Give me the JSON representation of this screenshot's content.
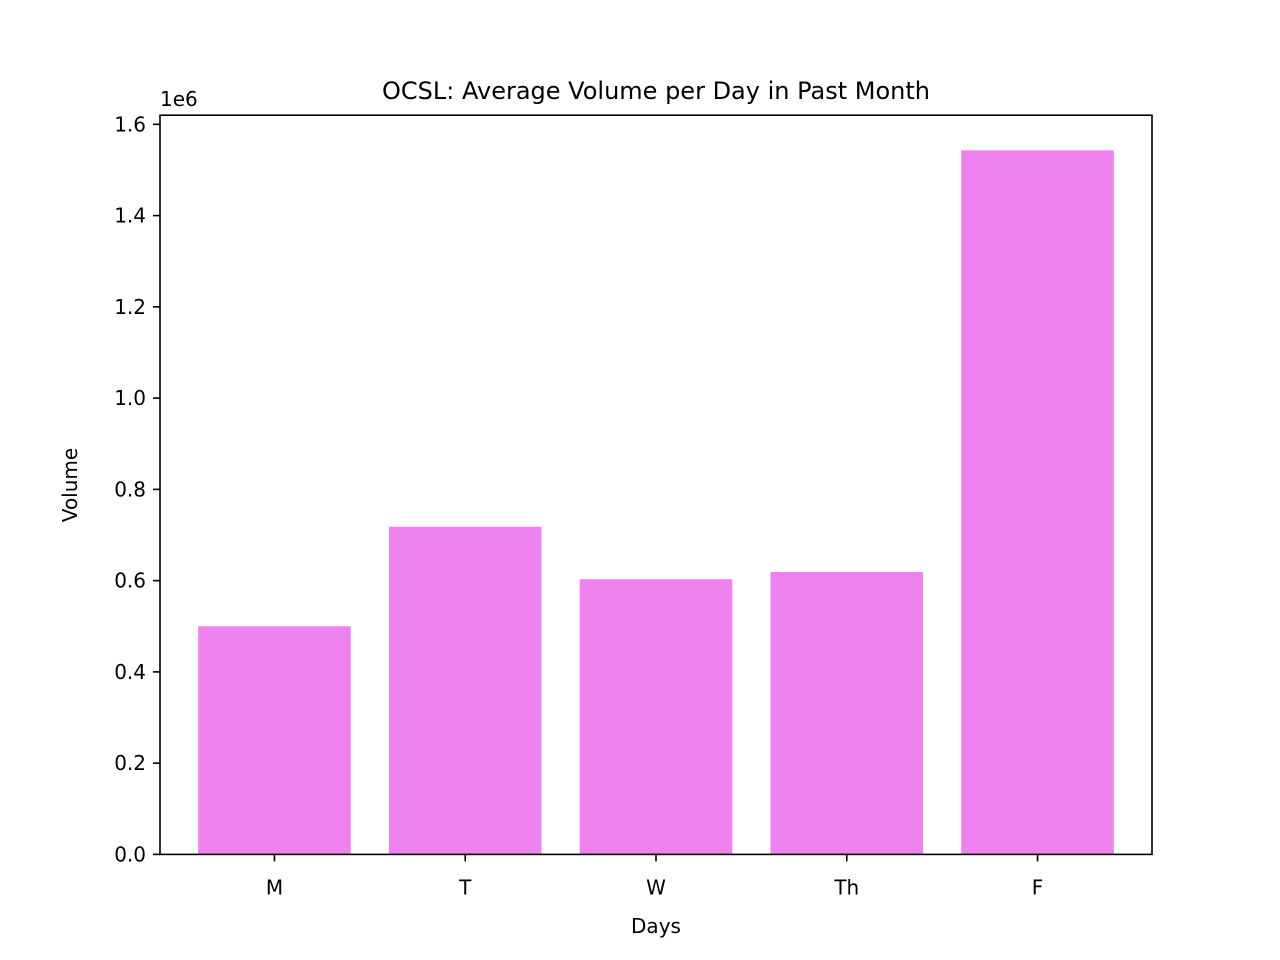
{
  "chart_data": {
    "type": "bar",
    "title": "OCSL: Average Volume per Day in Past Month",
    "xlabel": "Days",
    "ylabel": "Volume",
    "y_offset_label": "1e6",
    "categories": [
      "M",
      "T",
      "W",
      "Th",
      "F"
    ],
    "values": [
      500000,
      718000,
      603000,
      619000,
      1543000
    ],
    "ylim": [
      0,
      1620000
    ],
    "y_ticks": [
      0.0,
      0.2,
      0.4,
      0.6,
      0.8,
      1.0,
      1.2,
      1.4,
      1.6
    ],
    "y_tick_labels": [
      "0.0",
      "0.2",
      "0.4",
      "0.6",
      "0.8",
      "1.0",
      "1.2",
      "1.4",
      "1.6"
    ],
    "y_tick_multiplier": 1000000,
    "grid": false,
    "legend": "none",
    "colors": {
      "bar": "#ee82ee",
      "axes": "#000000",
      "background": "#ffffff"
    }
  }
}
